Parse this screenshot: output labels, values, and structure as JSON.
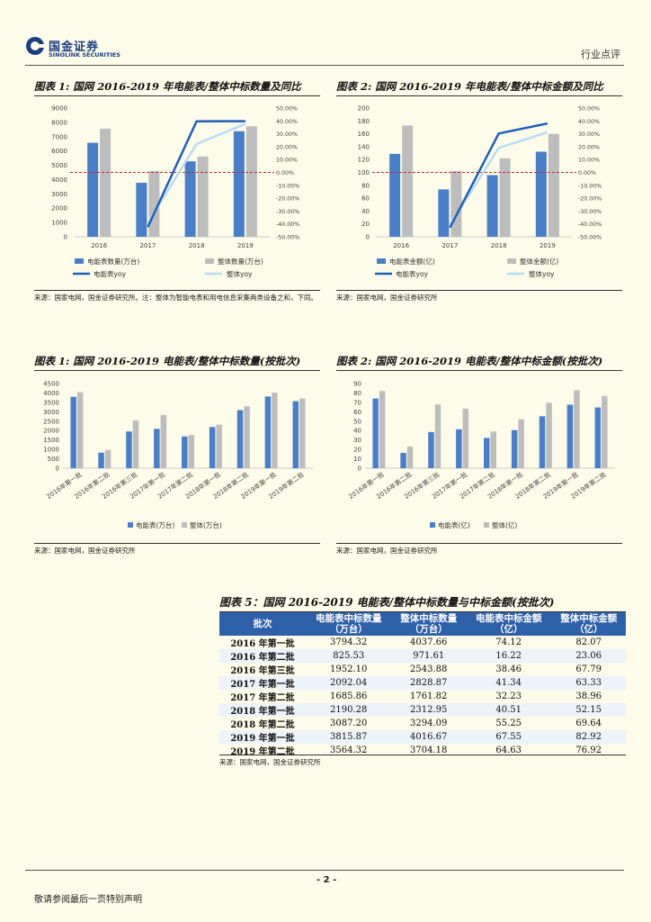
{
  "header": {
    "logo_cn": "国金证券",
    "logo_en": "SINOLINK SECURITIES",
    "report_type": "行业点评"
  },
  "fig1": {
    "title": "图表 1: 国网 2016-2019 年电能表/整体中标数量及同比",
    "source": "来源：国家电网，国金证券研究所。注：整体为智能电表和用电信息采集两类设备之和，下同。",
    "legend": {
      "bar1": "电能表数量(万台)",
      "bar2": "整体数量(万台)",
      "line1": "电能表yoy",
      "line2": "整体yoy"
    },
    "categories": [
      "2016",
      "2017",
      "2018",
      "2019"
    ],
    "left_ticks": [
      "0",
      "1000",
      "2000",
      "3000",
      "4000",
      "5000",
      "6000",
      "7000",
      "8000",
      "9000"
    ],
    "right_ticks": [
      "-50.00%",
      "-40.00%",
      "-30.00%",
      "-20.00%",
      "-10.00%",
      "0.00%",
      "10.00%",
      "20.00%",
      "30.00%",
      "40.00%",
      "50.00%"
    ]
  },
  "fig2": {
    "title": "图表 2: 国网 2016-2019 年电能表/整体中标金额及同比",
    "source": "来源：国家电网，国金证券研究所",
    "legend": {
      "bar1": "电能表金额(亿)",
      "bar2": "整体金额(亿)",
      "line1": "电能表yoy",
      "line2": "整体yoy"
    },
    "categories": [
      "2016",
      "2017",
      "2018",
      "2019"
    ],
    "left_ticks": [
      "0",
      "20",
      "40",
      "60",
      "80",
      "100",
      "120",
      "140",
      "160",
      "180",
      "200"
    ],
    "right_ticks": [
      "-50.00%",
      "-40.00%",
      "-30.00%",
      "-20.00%",
      "-10.00%",
      "0.00%",
      "10.00%",
      "20.00%",
      "30.00%",
      "40.00%",
      "50.00%"
    ]
  },
  "fig3": {
    "title": "图表 1: 国网 2016-2019 电能表/整体中标数量(按批次)",
    "source": "来源：国家电网，国金证券研究所",
    "legend": {
      "bar1": "电能表(万台)",
      "bar2": "整体(万台)"
    },
    "ticks": [
      "0",
      "500",
      "1000",
      "1500",
      "2000",
      "2500",
      "3000",
      "3500",
      "4000",
      "4500"
    ]
  },
  "fig4": {
    "title": "图表 2: 国网 2016-2019 电能表/整体中标金额(按批次)",
    "source": "来源：国家电网，国金证券研究所",
    "legend": {
      "bar1": "电能表(亿)",
      "bar2": "整体(亿)"
    },
    "ticks": [
      "0",
      "10",
      "20",
      "30",
      "40",
      "50",
      "60",
      "70",
      "80",
      "90"
    ]
  },
  "batches": [
    "2016年第一批",
    "2016年第二批",
    "2016年第三批",
    "2017年第一批",
    "2017年第二批",
    "2018年第一批",
    "2018年第二批",
    "2019年第一批",
    "2019年第二批"
  ],
  "table": {
    "title": "图表 5：国网 2016-2019 电能表/整体中标数量与中标金额(按批次)",
    "headers": [
      "批次",
      "电能表中标数量\n（万台）",
      "整体中标数量\n（万台）",
      "电能表中标金额\n（亿）",
      "整体中标金额\n（亿）"
    ],
    "rows": [
      [
        "2016 年第一批",
        "3794.32",
        "4037.66",
        "74.12",
        "82.07"
      ],
      [
        "2016 年第二批",
        "825.53",
        "971.61",
        "16.22",
        "23.06"
      ],
      [
        "2016 年第三批",
        "1952.10",
        "2543.88",
        "38.46",
        "67.79"
      ],
      [
        "2017 年第一批",
        "2092.04",
        "2828.87",
        "41.34",
        "63.33"
      ],
      [
        "2017 年第二批",
        "1685.86",
        "1761.82",
        "32.23",
        "38.96"
      ],
      [
        "2018 年第一批",
        "2190.28",
        "2312.95",
        "40.51",
        "52.15"
      ],
      [
        "2018 年第二批",
        "3087.20",
        "3294.09",
        "55.25",
        "69.64"
      ],
      [
        "2019 年第一批",
        "3815.87",
        "4016.67",
        "67.55",
        "82.92"
      ],
      [
        "2019 年第二批",
        "3564.32",
        "3704.18",
        "64.63",
        "76.92"
      ]
    ],
    "source": "来源：国家电网，国金证券研究所"
  },
  "footer": {
    "page": "- 2 -",
    "disclaimer": "敬请参阅最后一页特别声明"
  },
  "colors": {
    "bar1": "#4a7fc8",
    "bar2": "#bdbdbd",
    "line1": "#1f5fb8",
    "line2": "#b9dcf5",
    "zero": "#c0272d",
    "header": "#2e5fa9"
  },
  "chart_data": [
    {
      "type": "bar",
      "title": "图表 1: 国网 2016-2019 年电能表/整体中标数量及同比",
      "categories": [
        "2016",
        "2017",
        "2018",
        "2019"
      ],
      "ylim": [
        0,
        9000
      ],
      "y2lim": [
        -0.5,
        0.5
      ],
      "grid": false,
      "legend": "bottom",
      "series": [
        {
          "name": "电能表数量(万台)",
          "type": "bar",
          "values": [
            6572,
            3778,
            5277,
            7380
          ]
        },
        {
          "name": "整体数量(万台)",
          "type": "bar",
          "values": [
            7553,
            4591,
            5607,
            7721
          ]
        },
        {
          "name": "电能表yoy",
          "type": "line",
          "axis": "right",
          "values": [
            null,
            -0.425,
            0.397,
            0.398
          ]
        },
        {
          "name": "整体yoy",
          "type": "line",
          "axis": "right",
          "values": [
            null,
            -0.392,
            0.221,
            0.377
          ]
        }
      ]
    },
    {
      "type": "bar",
      "title": "图表 2: 国网 2016-2019 年电能表/整体中标金额及同比",
      "categories": [
        "2016",
        "2017",
        "2018",
        "2019"
      ],
      "ylim": [
        0,
        200
      ],
      "y2lim": [
        -0.5,
        0.5
      ],
      "grid": false,
      "legend": "bottom",
      "series": [
        {
          "name": "电能表金额(亿)",
          "type": "bar",
          "values": [
            128.8,
            73.6,
            95.8,
            132.2
          ]
        },
        {
          "name": "整体金额(亿)",
          "type": "bar",
          "values": [
            172.9,
            102.3,
            121.8,
            159.8
          ]
        },
        {
          "name": "电能表yoy",
          "type": "line",
          "axis": "right",
          "values": [
            null,
            -0.429,
            0.302,
            0.38
          ]
        },
        {
          "name": "整体yoy",
          "type": "line",
          "axis": "right",
          "values": [
            null,
            -0.408,
            0.19,
            0.312
          ]
        }
      ]
    },
    {
      "type": "bar",
      "title": "图表 1: 国网 2016-2019 电能表/整体中标数量(按批次)",
      "categories": [
        "2016年第一批",
        "2016年第二批",
        "2016年第三批",
        "2017年第一批",
        "2017年第二批",
        "2018年第一批",
        "2018年第二批",
        "2019年第一批",
        "2019年第二批"
      ],
      "ylim": [
        0,
        4500
      ],
      "grid": false,
      "legend": "bottom",
      "series": [
        {
          "name": "电能表(万台)",
          "values": [
            3794.32,
            825.53,
            1952.1,
            2092.04,
            1685.86,
            2190.28,
            3087.2,
            3815.87,
            3564.32
          ]
        },
        {
          "name": "整体(万台)",
          "values": [
            4037.66,
            971.61,
            2543.88,
            2828.87,
            1761.82,
            2312.95,
            3294.09,
            4016.67,
            3704.18
          ]
        }
      ]
    },
    {
      "type": "bar",
      "title": "图表 2: 国网 2016-2019 电能表/整体中标金额(按批次)",
      "categories": [
        "2016年第一批",
        "2016年第二批",
        "2016年第三批",
        "2017年第一批",
        "2017年第二批",
        "2018年第一批",
        "2018年第二批",
        "2019年第一批",
        "2019年第二批"
      ],
      "ylim": [
        0,
        90
      ],
      "grid": false,
      "legend": "bottom",
      "series": [
        {
          "name": "电能表(亿)",
          "values": [
            74.12,
            16.22,
            38.46,
            41.34,
            32.23,
            40.51,
            55.25,
            67.55,
            64.63
          ]
        },
        {
          "name": "整体(亿)",
          "values": [
            82.07,
            23.06,
            67.79,
            63.33,
            38.96,
            52.15,
            69.64,
            82.92,
            76.92
          ]
        }
      ]
    }
  ]
}
